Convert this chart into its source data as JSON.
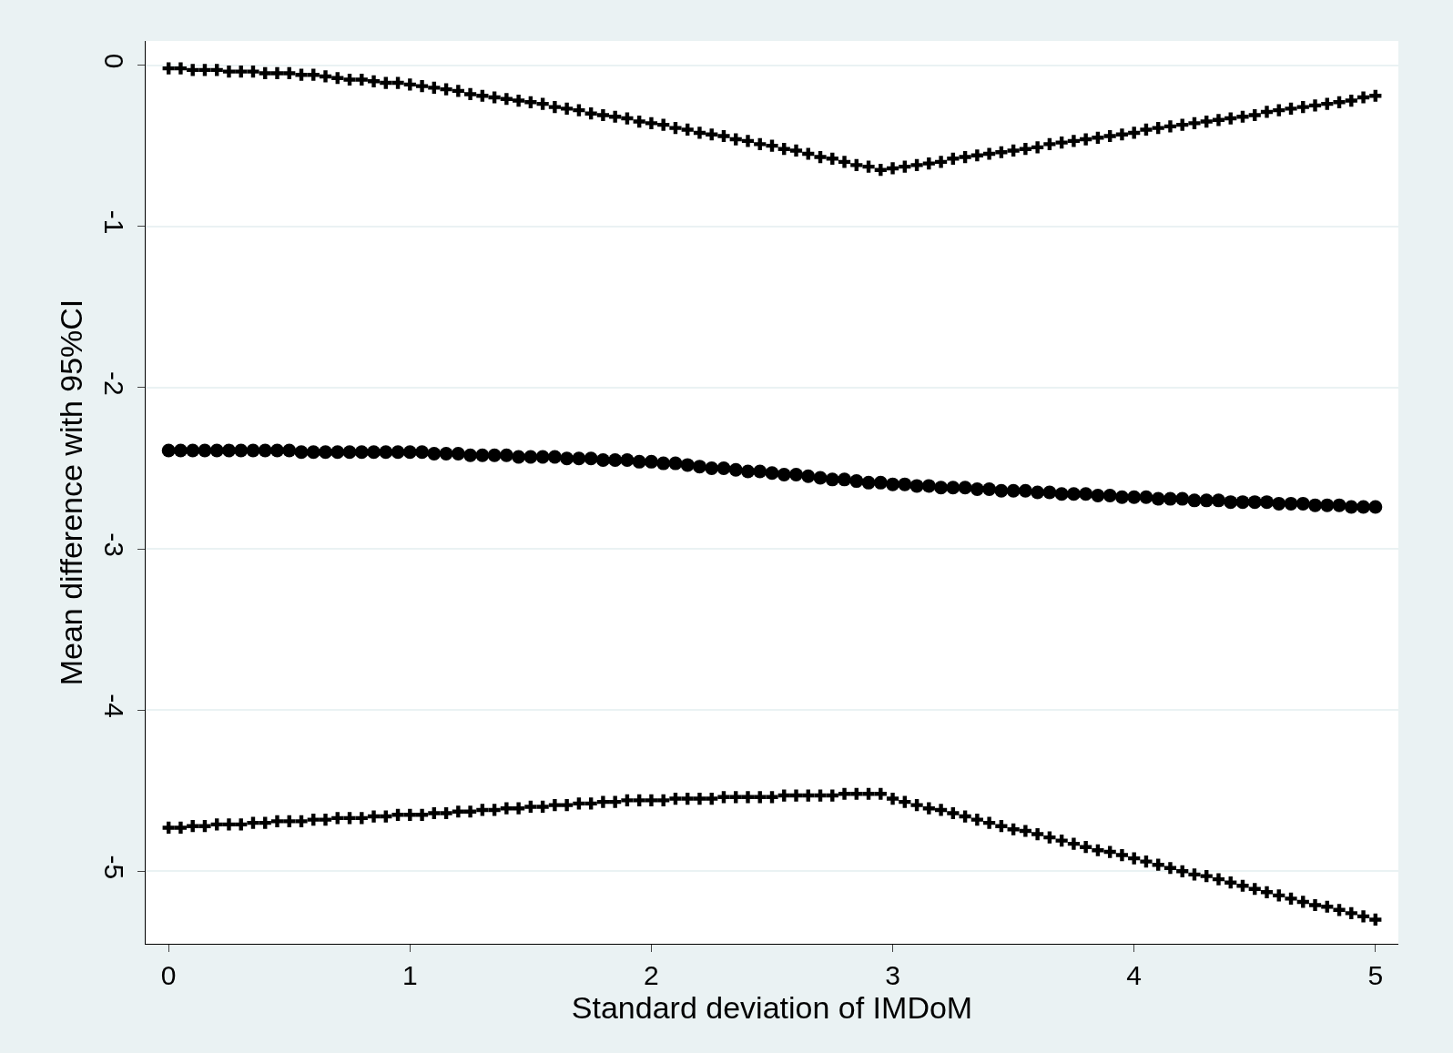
{
  "chart_data": {
    "type": "scatter",
    "xlabel": "Standard deviation of IMDoM",
    "ylabel": "Mean difference with 95%CI",
    "x": [
      0,
      0.05,
      0.1,
      0.15,
      0.2,
      0.25,
      0.3,
      0.35,
      0.4,
      0.45,
      0.5,
      0.55,
      0.6,
      0.65,
      0.7,
      0.75,
      0.8,
      0.85,
      0.9,
      0.95,
      1,
      1.05,
      1.1,
      1.15,
      1.2,
      1.25,
      1.3,
      1.35,
      1.4,
      1.45,
      1.5,
      1.55,
      1.6,
      1.65,
      1.7,
      1.75,
      1.8,
      1.85,
      1.9,
      1.95,
      2,
      2.05,
      2.1,
      2.15,
      2.2,
      2.25,
      2.3,
      2.35,
      2.4,
      2.45,
      2.5,
      2.55,
      2.6,
      2.65,
      2.7,
      2.75,
      2.8,
      2.85,
      2.9,
      2.95,
      3,
      3.05,
      3.1,
      3.15,
      3.2,
      3.25,
      3.3,
      3.35,
      3.4,
      3.45,
      3.5,
      3.55,
      3.6,
      3.65,
      3.7,
      3.75,
      3.8,
      3.85,
      3.9,
      3.95,
      4,
      4.05,
      4.1,
      4.15,
      4.2,
      4.25,
      4.3,
      4.35,
      4.4,
      4.45,
      4.5,
      4.55,
      4.6,
      4.65,
      4.7,
      4.75,
      4.8,
      4.85,
      4.9,
      4.95,
      5
    ],
    "series": [
      {
        "color": "#000000",
        "marker": "cross",
        "values": [
          -0.02,
          -0.02,
          -0.03,
          -0.03,
          -0.03,
          -0.04,
          -0.04,
          -0.04,
          -0.05,
          -0.05,
          -0.05,
          -0.06,
          -0.06,
          -0.07,
          -0.08,
          -0.09,
          -0.09,
          -0.1,
          -0.11,
          -0.11,
          -0.12,
          -0.13,
          -0.14,
          -0.15,
          -0.16,
          -0.18,
          -0.19,
          -0.2,
          -0.21,
          -0.22,
          -0.23,
          -0.24,
          -0.26,
          -0.27,
          -0.28,
          -0.3,
          -0.31,
          -0.32,
          -0.33,
          -0.35,
          -0.36,
          -0.37,
          -0.39,
          -0.4,
          -0.42,
          -0.43,
          -0.44,
          -0.46,
          -0.47,
          -0.49,
          -0.5,
          -0.52,
          -0.53,
          -0.55,
          -0.57,
          -0.58,
          -0.6,
          -0.62,
          -0.63,
          -0.65,
          -0.64,
          -0.63,
          -0.62,
          -0.61,
          -0.6,
          -0.58,
          -0.57,
          -0.56,
          -0.55,
          -0.54,
          -0.53,
          -0.52,
          -0.51,
          -0.49,
          -0.48,
          -0.47,
          -0.46,
          -0.45,
          -0.44,
          -0.43,
          -0.42,
          -0.4,
          -0.39,
          -0.38,
          -0.37,
          -0.36,
          -0.35,
          -0.34,
          -0.33,
          -0.32,
          -0.31,
          -0.29,
          -0.28,
          -0.27,
          -0.26,
          -0.25,
          -0.24,
          -0.23,
          -0.22,
          -0.2,
          -0.19
        ]
      },
      {
        "color": "#000000",
        "marker": "circle",
        "values": [
          -2.39,
          -2.39,
          -2.39,
          -2.39,
          -2.39,
          -2.39,
          -2.39,
          -2.39,
          -2.39,
          -2.39,
          -2.39,
          -2.4,
          -2.4,
          -2.4,
          -2.4,
          -2.4,
          -2.4,
          -2.4,
          -2.4,
          -2.4,
          -2.4,
          -2.4,
          -2.41,
          -2.41,
          -2.41,
          -2.42,
          -2.42,
          -2.42,
          -2.42,
          -2.43,
          -2.43,
          -2.43,
          -2.43,
          -2.44,
          -2.44,
          -2.44,
          -2.45,
          -2.45,
          -2.45,
          -2.46,
          -2.46,
          -2.47,
          -2.47,
          -2.48,
          -2.49,
          -2.5,
          -2.5,
          -2.51,
          -2.52,
          -2.52,
          -2.53,
          -2.54,
          -2.54,
          -2.55,
          -2.56,
          -2.57,
          -2.57,
          -2.58,
          -2.59,
          -2.59,
          -2.6,
          -2.6,
          -2.61,
          -2.61,
          -2.62,
          -2.62,
          -2.62,
          -2.63,
          -2.63,
          -2.64,
          -2.64,
          -2.64,
          -2.65,
          -2.65,
          -2.66,
          -2.66,
          -2.66,
          -2.67,
          -2.67,
          -2.68,
          -2.68,
          -2.68,
          -2.69,
          -2.69,
          -2.69,
          -2.7,
          -2.7,
          -2.7,
          -2.71,
          -2.71,
          -2.71,
          -2.71,
          -2.72,
          -2.72,
          -2.72,
          -2.73,
          -2.73,
          -2.73,
          -2.74,
          -2.74,
          -2.74
        ]
      },
      {
        "color": "#000000",
        "marker": "cross",
        "values": [
          -4.73,
          -4.73,
          -4.72,
          -4.72,
          -4.71,
          -4.71,
          -4.71,
          -4.7,
          -4.7,
          -4.69,
          -4.69,
          -4.69,
          -4.68,
          -4.68,
          -4.67,
          -4.67,
          -4.67,
          -4.66,
          -4.66,
          -4.65,
          -4.65,
          -4.65,
          -4.64,
          -4.64,
          -4.63,
          -4.63,
          -4.62,
          -4.62,
          -4.61,
          -4.61,
          -4.6,
          -4.6,
          -4.59,
          -4.59,
          -4.58,
          -4.58,
          -4.57,
          -4.57,
          -4.56,
          -4.56,
          -4.56,
          -4.56,
          -4.55,
          -4.55,
          -4.55,
          -4.55,
          -4.54,
          -4.54,
          -4.54,
          -4.54,
          -4.54,
          -4.53,
          -4.53,
          -4.53,
          -4.53,
          -4.53,
          -4.52,
          -4.52,
          -4.52,
          -4.52,
          -4.55,
          -4.57,
          -4.59,
          -4.61,
          -4.62,
          -4.64,
          -4.66,
          -4.68,
          -4.7,
          -4.72,
          -4.74,
          -4.75,
          -4.77,
          -4.79,
          -4.81,
          -4.83,
          -4.85,
          -4.87,
          -4.88,
          -4.9,
          -4.92,
          -4.94,
          -4.96,
          -4.98,
          -5,
          -5.02,
          -5.03,
          -5.05,
          -5.07,
          -5.09,
          -5.11,
          -5.13,
          -5.15,
          -5.17,
          -5.19,
          -5.21,
          -5.22,
          -5.24,
          -5.26,
          -5.28,
          -5.3
        ]
      }
    ],
    "xlim": [
      -0.095,
      5.095
    ],
    "xticks": [
      0,
      1,
      2,
      3,
      4,
      5
    ],
    "ylim": [
      -5.45,
      0.15
    ],
    "yticks": [
      -5,
      -4,
      -3,
      -2,
      -1,
      0
    ],
    "grid": "y"
  }
}
